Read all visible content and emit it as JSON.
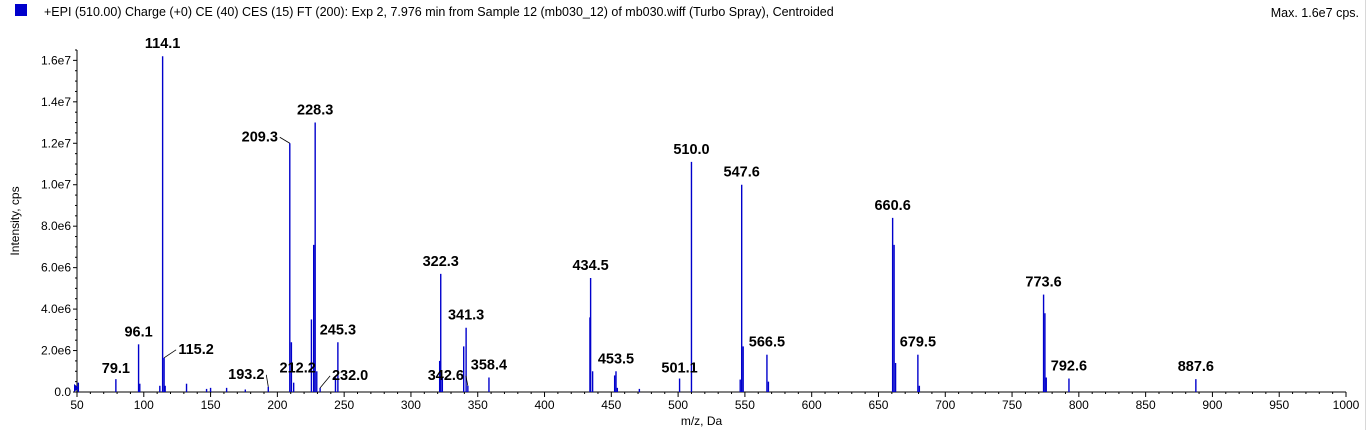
{
  "header": {
    "title": "+EPI (510.00) Charge (+0) CE (40) CES (15) FT (200): Exp 2, 7.976 min from Sample 12 (mb030_12) of mb030.wiff (Turbo Spray), Centroided",
    "max_label": "Max. 1.6e7 cps."
  },
  "colors": {
    "series": "#0000cc",
    "marker": "#0000cc"
  },
  "chart_data": {
    "type": "bar",
    "xlabel": "m/z, Da",
    "ylabel": "Intensity, cps",
    "xlim": [
      50,
      1000
    ],
    "ylim": [
      0,
      16500000
    ],
    "grid": false,
    "x_ticks": [
      50,
      100,
      150,
      200,
      250,
      300,
      350,
      400,
      450,
      500,
      550,
      600,
      650,
      700,
      750,
      800,
      850,
      900,
      950,
      1000
    ],
    "y_ticks": [
      {
        "value": 0,
        "label": "0.0"
      },
      {
        "value": 2000000,
        "label": "2.0e6"
      },
      {
        "value": 4000000,
        "label": "4.0e6"
      },
      {
        "value": 6000000,
        "label": "6.0e6"
      },
      {
        "value": 8000000,
        "label": "8.0e6"
      },
      {
        "value": 10000000,
        "label": "1.0e7"
      },
      {
        "value": 12000000,
        "label": "1.2e7"
      },
      {
        "value": 14000000,
        "label": "1.4e7"
      },
      {
        "value": 16000000,
        "label": "1.6e7"
      }
    ],
    "peaks": [
      {
        "mz": 51.0,
        "intensity": 450000
      },
      {
        "mz": 79.1,
        "intensity": 620000
      },
      {
        "mz": 96.1,
        "intensity": 2300000
      },
      {
        "mz": 97.0,
        "intensity": 400000
      },
      {
        "mz": 112.0,
        "intensity": 300000
      },
      {
        "mz": 114.1,
        "intensity": 16200000
      },
      {
        "mz": 115.2,
        "intensity": 1650000
      },
      {
        "mz": 116.0,
        "intensity": 300000
      },
      {
        "mz": 132.0,
        "intensity": 400000
      },
      {
        "mz": 147.0,
        "intensity": 150000
      },
      {
        "mz": 150.0,
        "intensity": 200000
      },
      {
        "mz": 162.0,
        "intensity": 200000
      },
      {
        "mz": 176.0,
        "intensity": 120000
      },
      {
        "mz": 193.2,
        "intensity": 250000
      },
      {
        "mz": 209.3,
        "intensity": 12000000
      },
      {
        "mz": 210.5,
        "intensity": 2400000
      },
      {
        "mz": 212.2,
        "intensity": 450000
      },
      {
        "mz": 225.5,
        "intensity": 3500000
      },
      {
        "mz": 227.2,
        "intensity": 7100000
      },
      {
        "mz": 228.3,
        "intensity": 13000000
      },
      {
        "mz": 229.5,
        "intensity": 1000000
      },
      {
        "mz": 232.0,
        "intensity": 200000
      },
      {
        "mz": 243.5,
        "intensity": 700000
      },
      {
        "mz": 245.3,
        "intensity": 2400000
      },
      {
        "mz": 321.5,
        "intensity": 1500000
      },
      {
        "mz": 322.3,
        "intensity": 5700000
      },
      {
        "mz": 323.5,
        "intensity": 700000
      },
      {
        "mz": 339.5,
        "intensity": 2200000
      },
      {
        "mz": 341.3,
        "intensity": 3100000
      },
      {
        "mz": 342.6,
        "intensity": 300000
      },
      {
        "mz": 358.4,
        "intensity": 700000
      },
      {
        "mz": 434.0,
        "intensity": 3600000
      },
      {
        "mz": 434.5,
        "intensity": 5500000
      },
      {
        "mz": 436.0,
        "intensity": 1000000
      },
      {
        "mz": 452.5,
        "intensity": 800000
      },
      {
        "mz": 453.5,
        "intensity": 1000000
      },
      {
        "mz": 454.5,
        "intensity": 200000
      },
      {
        "mz": 471.0,
        "intensity": 150000
      },
      {
        "mz": 501.1,
        "intensity": 650000
      },
      {
        "mz": 510.0,
        "intensity": 11100000
      },
      {
        "mz": 546.5,
        "intensity": 600000
      },
      {
        "mz": 547.6,
        "intensity": 10000000
      },
      {
        "mz": 548.7,
        "intensity": 2200000
      },
      {
        "mz": 566.5,
        "intensity": 1800000
      },
      {
        "mz": 567.6,
        "intensity": 500000
      },
      {
        "mz": 660.6,
        "intensity": 8400000
      },
      {
        "mz": 661.7,
        "intensity": 7100000
      },
      {
        "mz": 662.8,
        "intensity": 1400000
      },
      {
        "mz": 679.5,
        "intensity": 1800000
      },
      {
        "mz": 680.6,
        "intensity": 300000
      },
      {
        "mz": 773.6,
        "intensity": 4700000
      },
      {
        "mz": 774.6,
        "intensity": 3800000
      },
      {
        "mz": 775.6,
        "intensity": 700000
      },
      {
        "mz": 792.6,
        "intensity": 650000
      },
      {
        "mz": 887.6,
        "intensity": 620000
      }
    ],
    "annotations": [
      {
        "text": "114.1",
        "mz": 114.1
      },
      {
        "text": "96.1",
        "mz": 96.1
      },
      {
        "text": "79.1",
        "mz": 79.1
      },
      {
        "text": "115.2",
        "mz": 115.2
      },
      {
        "text": "209.3",
        "mz": 209.3
      },
      {
        "text": "228.3",
        "mz": 228.3
      },
      {
        "text": "193.2",
        "mz": 193.2
      },
      {
        "text": "212.2",
        "mz": 212.2
      },
      {
        "text": "232.0",
        "mz": 232.0
      },
      {
        "text": "245.3",
        "mz": 245.3
      },
      {
        "text": "322.3",
        "mz": 322.3
      },
      {
        "text": "341.3",
        "mz": 341.3
      },
      {
        "text": "342.6",
        "mz": 342.6
      },
      {
        "text": "358.4",
        "mz": 358.4
      },
      {
        "text": "434.5",
        "mz": 434.5
      },
      {
        "text": "453.5",
        "mz": 453.5
      },
      {
        "text": "501.1",
        "mz": 501.1
      },
      {
        "text": "510.0",
        "mz": 510.0
      },
      {
        "text": "547.6",
        "mz": 547.6
      },
      {
        "text": "566.5",
        "mz": 566.5
      },
      {
        "text": "660.6",
        "mz": 660.6
      },
      {
        "text": "679.5",
        "mz": 679.5
      },
      {
        "text": "773.6",
        "mz": 773.6
      },
      {
        "text": "792.6",
        "mz": 792.6
      },
      {
        "text": "887.6",
        "mz": 887.6
      }
    ]
  }
}
